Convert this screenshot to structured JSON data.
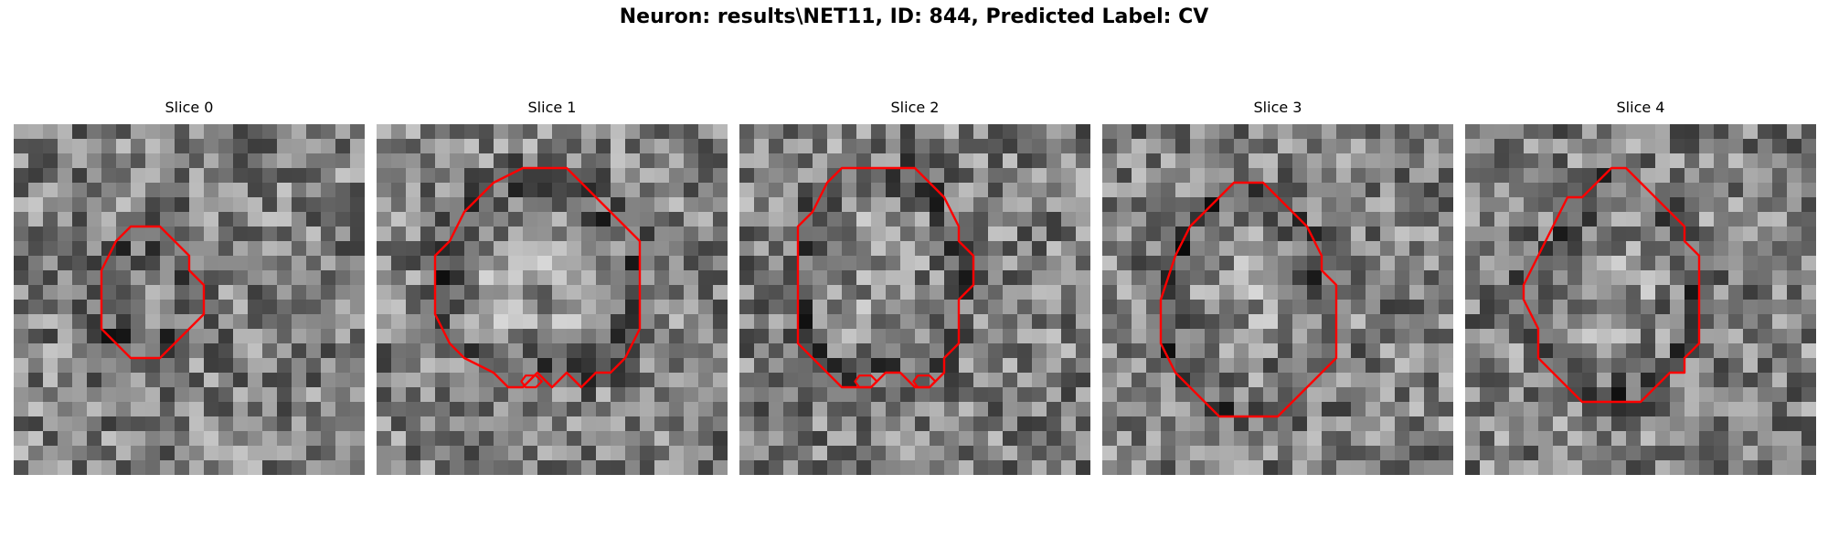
{
  "figure": {
    "title": "Neuron: results\\NET11, ID: 844, Predicted Label: CV"
  },
  "contour_color": "#ff0000",
  "slices": [
    {
      "label": "Slice 0",
      "contour": [
        [
          8,
          7
        ],
        [
          10,
          7
        ],
        [
          11,
          8
        ],
        [
          12,
          9
        ],
        [
          12,
          10
        ],
        [
          13,
          11
        ],
        [
          13,
          13
        ],
        [
          12,
          14
        ],
        [
          11,
          15
        ],
        [
          10,
          16
        ],
        [
          8,
          16
        ],
        [
          7,
          15
        ],
        [
          6,
          14
        ],
        [
          6,
          10
        ],
        [
          7,
          8
        ]
      ],
      "holes": []
    },
    {
      "label": "Slice 1",
      "contour": [
        [
          10,
          3
        ],
        [
          13,
          3
        ],
        [
          14,
          4
        ],
        [
          15,
          5
        ],
        [
          16,
          6
        ],
        [
          17,
          7
        ],
        [
          18,
          8
        ],
        [
          18,
          11
        ],
        [
          18,
          14
        ],
        [
          17,
          16
        ],
        [
          16,
          17
        ],
        [
          15,
          17
        ],
        [
          14,
          18
        ],
        [
          13,
          17
        ],
        [
          12,
          18
        ],
        [
          11,
          17
        ],
        [
          10,
          18
        ],
        [
          9,
          18
        ],
        [
          8,
          17
        ],
        [
          6,
          16
        ],
        [
          5,
          15
        ],
        [
          4,
          13
        ],
        [
          4,
          9
        ],
        [
          5,
          8
        ],
        [
          6,
          6
        ],
        [
          8,
          4
        ]
      ],
      "holes": [
        [
          [
            10.2,
            17.2
          ],
          [
            10.9,
            17.2
          ],
          [
            11.3,
            17.6
          ],
          [
            10.9,
            18
          ],
          [
            10.2,
            18
          ],
          [
            9.9,
            17.6
          ]
        ]
      ]
    },
    {
      "label": "Slice 2",
      "contour": [
        [
          7,
          3
        ],
        [
          12,
          3
        ],
        [
          13,
          4
        ],
        [
          14,
          5
        ],
        [
          15,
          7
        ],
        [
          15,
          8
        ],
        [
          16,
          9
        ],
        [
          16,
          11
        ],
        [
          15,
          12
        ],
        [
          15,
          13
        ],
        [
          15,
          15
        ],
        [
          14,
          16
        ],
        [
          14,
          17
        ],
        [
          13,
          18
        ],
        [
          12,
          18
        ],
        [
          11,
          17
        ],
        [
          10,
          17
        ],
        [
          9,
          18
        ],
        [
          7,
          18
        ],
        [
          6,
          17
        ],
        [
          5,
          16
        ],
        [
          4,
          15
        ],
        [
          4,
          10
        ],
        [
          4,
          7
        ],
        [
          5,
          6
        ],
        [
          6,
          4
        ]
      ],
      "holes": [
        [
          [
            8.2,
            17.2
          ],
          [
            9,
            17.2
          ],
          [
            9.4,
            17.6
          ],
          [
            9,
            18
          ],
          [
            8.2,
            18
          ],
          [
            7.9,
            17.6
          ]
        ],
        [
          [
            12.2,
            17.2
          ],
          [
            13,
            17.2
          ],
          [
            13.4,
            17.6
          ],
          [
            13,
            18
          ],
          [
            12.2,
            18
          ],
          [
            11.9,
            17.6
          ]
        ]
      ]
    },
    {
      "label": "Slice 3",
      "contour": [
        [
          9,
          4
        ],
        [
          11,
          4
        ],
        [
          12,
          5
        ],
        [
          13,
          6
        ],
        [
          14,
          7
        ],
        [
          15,
          9
        ],
        [
          15,
          10
        ],
        [
          16,
          11
        ],
        [
          16,
          14
        ],
        [
          16,
          16
        ],
        [
          15,
          17
        ],
        [
          14,
          18
        ],
        [
          13,
          19
        ],
        [
          12,
          20
        ],
        [
          8,
          20
        ],
        [
          7,
          19
        ],
        [
          6,
          18
        ],
        [
          5,
          17
        ],
        [
          4,
          15
        ],
        [
          4,
          12
        ],
        [
          5,
          9
        ],
        [
          6,
          7
        ],
        [
          7,
          6
        ],
        [
          8,
          5
        ]
      ],
      "holes": []
    },
    {
      "label": "Slice 4",
      "contour": [
        [
          10,
          3
        ],
        [
          11,
          3
        ],
        [
          12,
          4
        ],
        [
          13,
          5
        ],
        [
          14,
          6
        ],
        [
          15,
          7
        ],
        [
          15,
          8
        ],
        [
          16,
          9
        ],
        [
          16,
          11
        ],
        [
          16,
          15
        ],
        [
          15,
          16
        ],
        [
          15,
          17
        ],
        [
          14,
          17
        ],
        [
          13,
          18
        ],
        [
          12,
          19
        ],
        [
          8,
          19
        ],
        [
          7,
          18
        ],
        [
          6,
          17
        ],
        [
          5,
          16
        ],
        [
          5,
          14
        ],
        [
          4,
          12
        ],
        [
          4,
          11
        ],
        [
          5,
          9
        ],
        [
          6,
          7
        ],
        [
          7,
          5
        ],
        [
          8,
          5
        ],
        [
          9,
          4
        ]
      ],
      "holes": []
    }
  ]
}
